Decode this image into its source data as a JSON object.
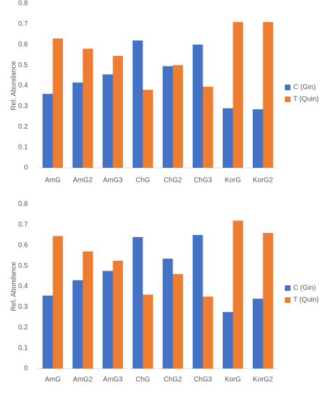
{
  "chart_data": [
    {
      "type": "bar",
      "ylabel": "Rel. Abundance",
      "categories": [
        "AmG",
        "AmG2",
        "AmG3",
        "ChG",
        "ChG2",
        "ChG3",
        "KorG",
        "KorG2"
      ],
      "series": [
        {
          "name": "C (Gin)",
          "color": "#4472c4",
          "values": [
            0.36,
            0.415,
            0.455,
            0.62,
            0.495,
            0.6,
            0.29,
            0.285
          ]
        },
        {
          "name": "T (Quin)",
          "color": "#ed7d31",
          "values": [
            0.63,
            0.58,
            0.545,
            0.38,
            0.5,
            0.395,
            0.71,
            0.71
          ]
        }
      ],
      "ylim": [
        0,
        0.8
      ],
      "yticks": [
        0,
        0.1,
        0.2,
        0.3,
        0.4,
        0.5,
        0.6,
        0.7,
        0.8
      ],
      "legend": "right"
    },
    {
      "type": "bar",
      "ylabel": "Rel. Abundance",
      "categories": [
        "AmG",
        "AmG2",
        "AmG3",
        "ChG",
        "ChG2",
        "ChG3",
        "KorG",
        "KorG2"
      ],
      "series": [
        {
          "name": "C (Gin)",
          "color": "#4472c4",
          "values": [
            0.355,
            0.43,
            0.475,
            0.64,
            0.535,
            0.65,
            0.275,
            0.34
          ]
        },
        {
          "name": "T (Quin)",
          "color": "#ed7d31",
          "values": [
            0.645,
            0.57,
            0.525,
            0.36,
            0.46,
            0.35,
            0.72,
            0.66
          ]
        }
      ],
      "ylim": [
        0,
        0.8
      ],
      "yticks": [
        0,
        0.1,
        0.2,
        0.3,
        0.4,
        0.5,
        0.6,
        0.7,
        0.8
      ],
      "legend": "right"
    }
  ]
}
